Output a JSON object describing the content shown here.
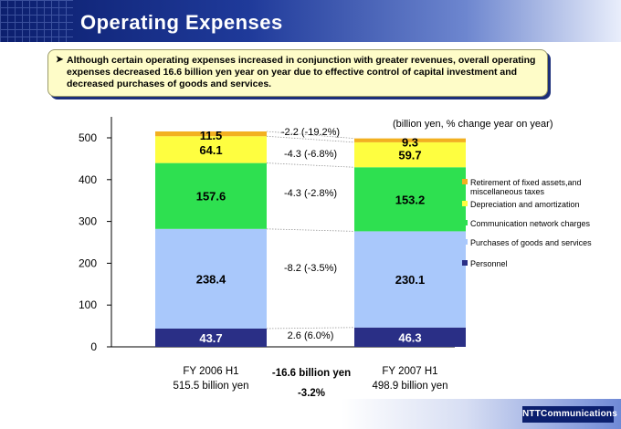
{
  "slide": {
    "title": "Operating Expenses",
    "callout": "Although certain operating expenses increased in conjunction with greater revenues, overall operating expenses decreased 16.6 billion yen year on year due to effective control of capital investment and decreased purchases of goods and services.",
    "logo_text": "NTTCommunications"
  },
  "chart_data": {
    "type": "bar",
    "stacked": true,
    "unit_note": "(billion yen, % change year on year)",
    "ylim": [
      0,
      500
    ],
    "yticks": [
      0,
      100,
      200,
      300,
      400,
      500
    ],
    "categories": [
      "FY 2006 H1",
      "FY 2007 H1"
    ],
    "category_totals": [
      "515.5 billion yen",
      "498.9 billion yen"
    ],
    "series": [
      {
        "name": "Personnel",
        "color": "#2a2f86",
        "values": [
          43.7,
          46.3
        ],
        "labels": [
          "43.7",
          "46.3"
        ],
        "change": "2.6 (6.0%)"
      },
      {
        "name": "Purchases of goods and services",
        "color": "#a9c8fb",
        "values": [
          238.4,
          230.1
        ],
        "labels": [
          "238.4",
          "230.1"
        ],
        "change": "-8.2 (-3.5%)"
      },
      {
        "name": "Communication network charges",
        "color": "#2ee050",
        "values": [
          157.6,
          153.2
        ],
        "labels": [
          "157.6",
          "153.2"
        ],
        "change": "-4.3 (-2.8%)"
      },
      {
        "name": "Depreciation and amortization",
        "color": "#fefe40",
        "values": [
          64.1,
          59.7
        ],
        "labels": [
          "64.1",
          "59.7"
        ],
        "change": "-4.3 (-6.8%)"
      },
      {
        "name": "Retirement of fixed assets,and miscellaneous taxes",
        "color": "#f2b020",
        "values": [
          11.5,
          9.3
        ],
        "labels": [
          "11.5",
          "9.3"
        ],
        "change": "-2.2 (-19.2%)"
      }
    ],
    "difference": {
      "amount": "-16.6 billion yen",
      "percent": "-3.2%"
    }
  }
}
